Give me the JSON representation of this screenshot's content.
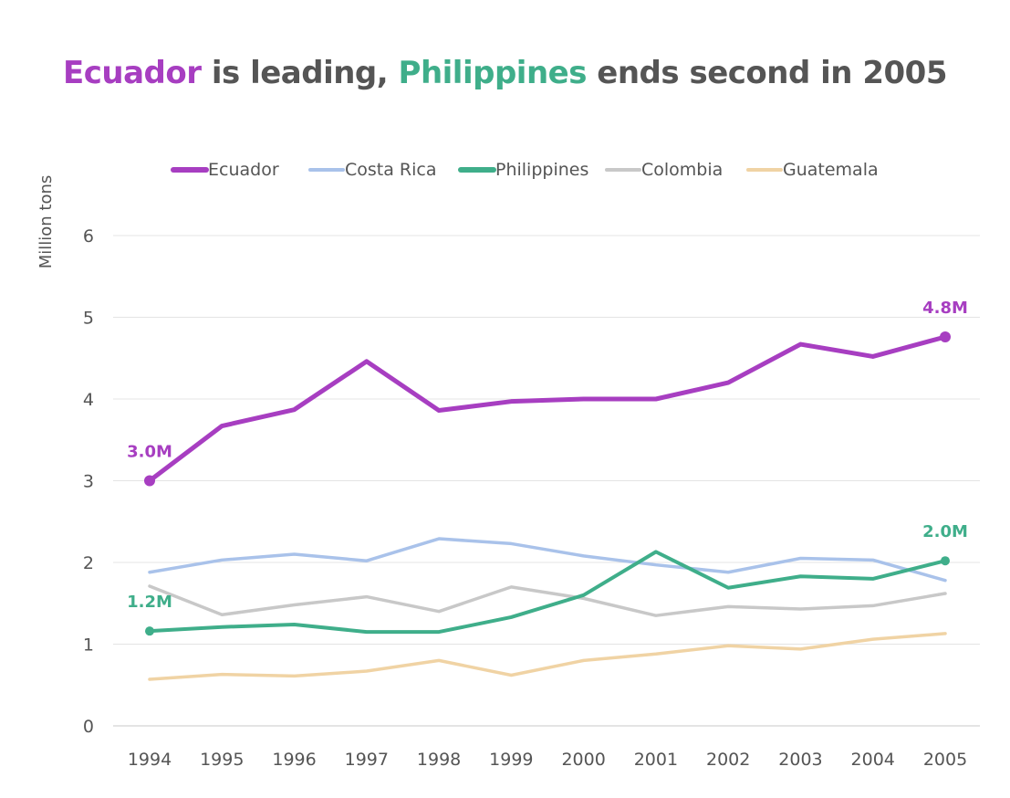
{
  "title": {
    "lead_country": "Ecuador",
    "lead_text": " is leading, ",
    "second_country": "Philippines",
    "second_text": " ends second in 2005"
  },
  "chart_data": {
    "type": "line",
    "title": "Ecuador is leading,  Philippines ends second in 2005",
    "ylabel": "Million tons",
    "xlabel": "",
    "ylim": [
      0,
      6
    ],
    "yticks": [
      0,
      1,
      2,
      3,
      4,
      5,
      6
    ],
    "x": [
      "1994",
      "1995",
      "1996",
      "1997",
      "1998",
      "1999",
      "2000",
      "2001",
      "2002",
      "2003",
      "2004",
      "2005"
    ],
    "grid": "horizontal",
    "legend_position": "top",
    "series": [
      {
        "name": "Ecuador",
        "color": "#a73ec1",
        "emphasis": true,
        "values": [
          3.0,
          3.67,
          3.87,
          4.46,
          3.86,
          3.97,
          4.0,
          4.0,
          4.2,
          4.67,
          4.52,
          4.76
        ],
        "labels": [
          {
            "index": 0,
            "text": "3.0M"
          },
          {
            "index": 11,
            "text": "4.8M"
          }
        ]
      },
      {
        "name": "Costa Rica",
        "color": "#a9c2ea",
        "emphasis": false,
        "values": [
          1.88,
          2.03,
          2.1,
          2.02,
          2.29,
          2.23,
          2.08,
          1.97,
          1.88,
          2.05,
          2.03,
          1.78
        ],
        "labels": []
      },
      {
        "name": "Philippines",
        "color": "#3fae8a",
        "emphasis": true,
        "values": [
          1.16,
          1.21,
          1.24,
          1.15,
          1.15,
          1.33,
          1.6,
          2.13,
          1.69,
          1.83,
          1.8,
          2.02
        ],
        "labels": [
          {
            "index": 0,
            "text": "1.2M"
          },
          {
            "index": 11,
            "text": "2.0M"
          }
        ]
      },
      {
        "name": "Colombia",
        "color": "#c8c8c8",
        "emphasis": false,
        "values": [
          1.71,
          1.36,
          1.48,
          1.58,
          1.4,
          1.7,
          1.56,
          1.35,
          1.46,
          1.43,
          1.47,
          1.62
        ],
        "labels": []
      },
      {
        "name": "Guatemala",
        "color": "#f0d3a4",
        "emphasis": false,
        "values": [
          0.57,
          0.63,
          0.61,
          0.67,
          0.8,
          0.62,
          0.8,
          0.88,
          0.98,
          0.94,
          1.06,
          1.13
        ],
        "labels": []
      }
    ]
  }
}
